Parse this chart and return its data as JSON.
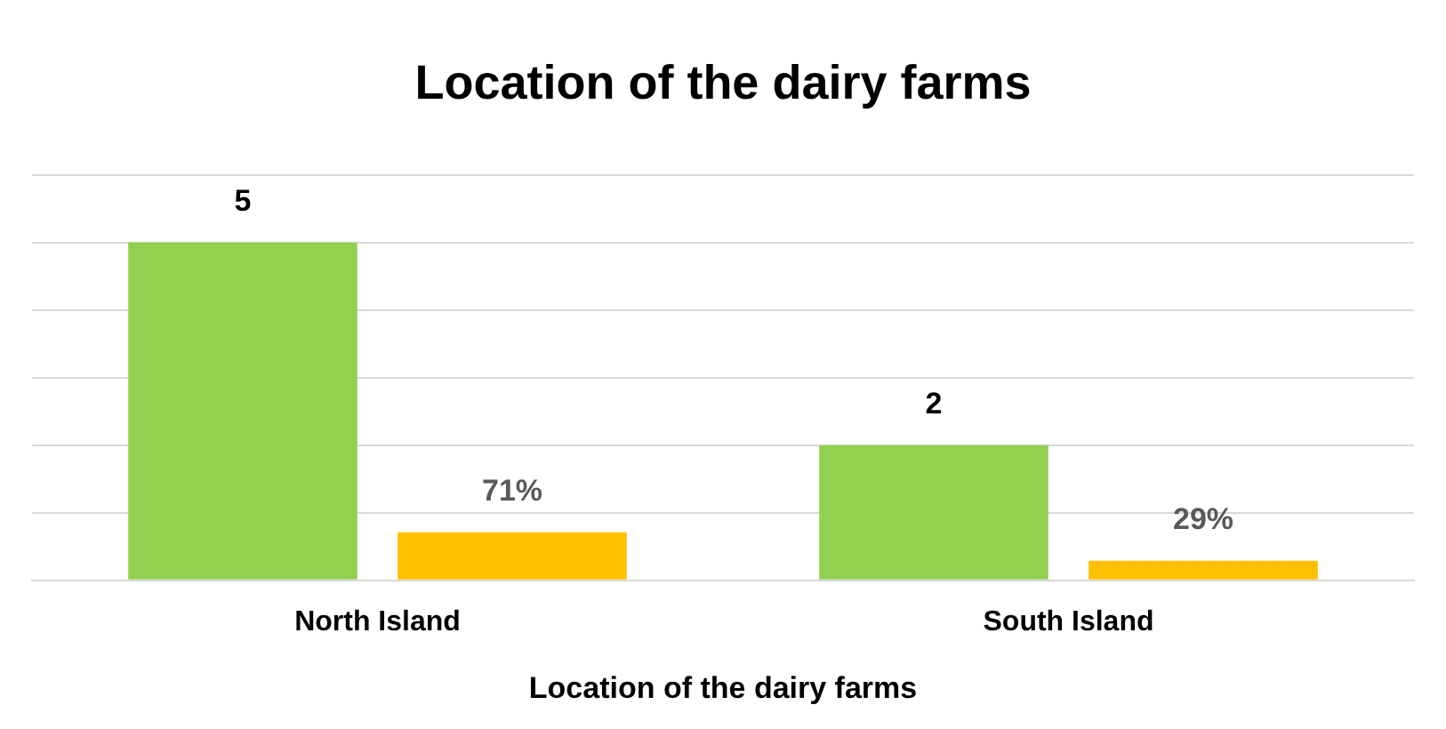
{
  "chart_data": {
    "type": "bar",
    "title": "Location of the dairy farms",
    "xlabel": "Location of the dairy farms",
    "categories": [
      "North Island",
      "South Island"
    ],
    "series": [
      {
        "color": "#92d050",
        "values": [
          5,
          2
        ],
        "value_labels": [
          "5",
          "2"
        ]
      },
      {
        "color": "#ffc000",
        "values": [
          0.71,
          0.29
        ],
        "value_labels": [
          "71%",
          "29%"
        ]
      }
    ],
    "ylim": [
      0,
      6
    ],
    "yticks": [
      {
        "value": 0,
        "label": null
      },
      {
        "value": 1,
        "label": null
      },
      {
        "value": 2,
        "label": null
      },
      {
        "value": 3,
        "label": null
      },
      {
        "value": 4,
        "label": null
      },
      {
        "value": 5,
        "label": null
      },
      {
        "value": 6,
        "label": null
      }
    ],
    "grid": "y",
    "tick_labels": "x",
    "legend": false
  }
}
